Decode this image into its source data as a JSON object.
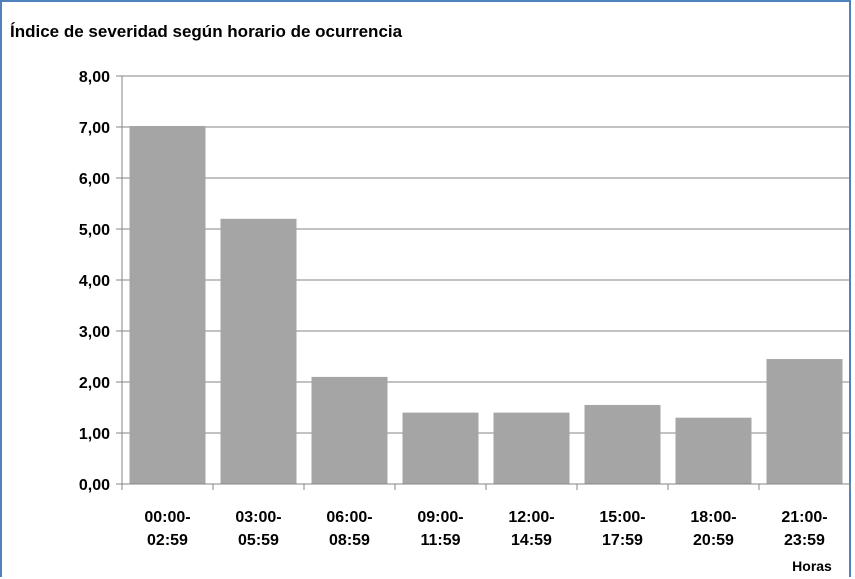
{
  "chart_data": {
    "type": "bar",
    "title": "Índice de severidad según horario de ocurrencia",
    "xlabel": "Horas",
    "ylabel": "",
    "ylim": [
      0,
      8
    ],
    "y_ticks": [
      "0,00",
      "1,00",
      "2,00",
      "3,00",
      "4,00",
      "5,00",
      "6,00",
      "7,00",
      "8,00"
    ],
    "categories": [
      [
        "00:00-",
        "02:59"
      ],
      [
        "03:00-",
        "05:59"
      ],
      [
        "06:00-",
        "08:59"
      ],
      [
        "09:00-",
        "11:59"
      ],
      [
        "12:00-",
        "14:59"
      ],
      [
        "15:00-",
        "17:59"
      ],
      [
        "18:00-",
        "20:59"
      ],
      [
        "21:00-",
        "23:59"
      ]
    ],
    "values": [
      7.02,
      5.2,
      2.1,
      1.4,
      1.4,
      1.55,
      1.3,
      2.45
    ],
    "bar_color": "#a5a5a5",
    "grid": true
  }
}
